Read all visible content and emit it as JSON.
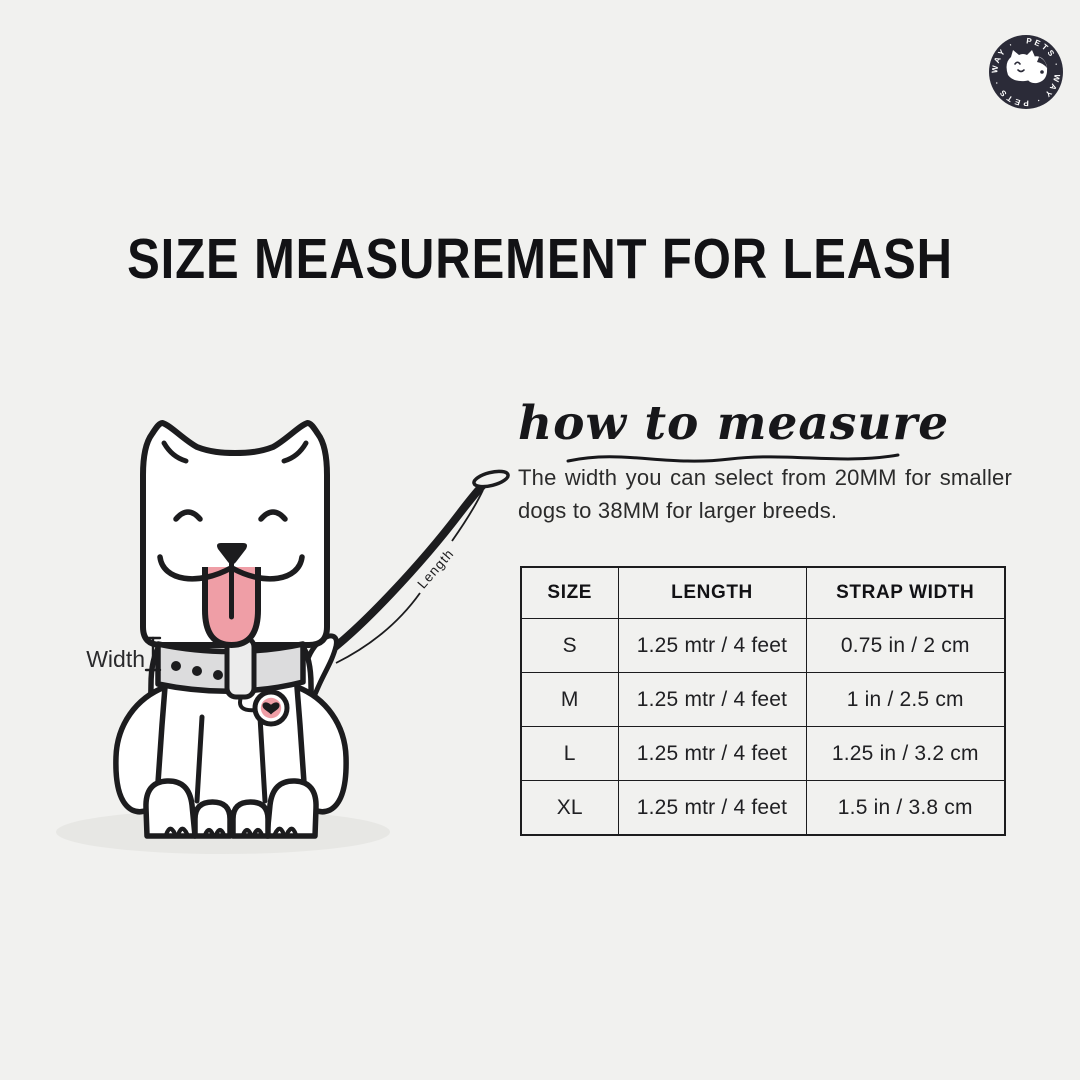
{
  "page": {
    "background": "#f1f1ef"
  },
  "logo": {
    "ring_text": "PETS · WAY · PETS · WAY ·",
    "badge_color": "#2b2b38"
  },
  "title": "SIZE MEASUREMENT FOR LEASH",
  "how_to_measure": {
    "heading": "how to measure",
    "description": "The width you can select from 20MM for smaller dogs to 38MM for larger breeds."
  },
  "illustration": {
    "width_label": "Width",
    "length_label": "Length",
    "colors": {
      "outline": "#1c1c1e",
      "pink": "#ef9ea6",
      "collar": "#dcdcdd",
      "buckle": "#ececec",
      "shadow": "#e7e7e4",
      "white": "#ffffff"
    }
  },
  "size_table": {
    "headers": [
      "SIZE",
      "LENGTH",
      "STRAP WIDTH"
    ],
    "rows": [
      [
        "S",
        "1.25 mtr / 4 feet",
        "0.75 in / 2 cm"
      ],
      [
        "M",
        "1.25 mtr / 4 feet",
        "1 in / 2.5 cm"
      ],
      [
        "L",
        "1.25 mtr / 4 feet",
        "1.25 in / 3.2 cm"
      ],
      [
        "XL",
        "1.25 mtr / 4 feet",
        "1.5 in / 3.8 cm"
      ]
    ]
  }
}
